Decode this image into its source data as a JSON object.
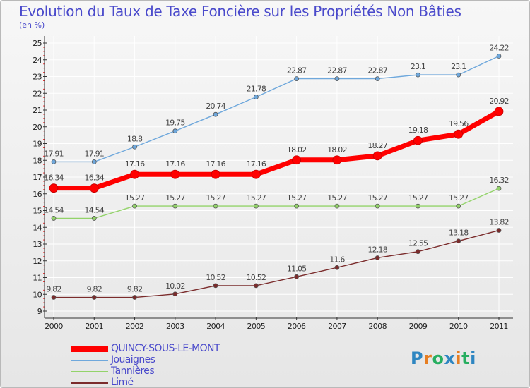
{
  "title": "Evolution du Taux de Taxe Foncière sur les Propriétés Non Bâties",
  "subtitle": "(en %)",
  "logo": {
    "text": "Proxiti",
    "colors": [
      "#2e86c1",
      "#e67e22",
      "#27ae60",
      "#2e86c1",
      "#e67e22",
      "#27ae60",
      "#2e86c1"
    ]
  },
  "chart_data": {
    "type": "line",
    "x": [
      "2000",
      "2001",
      "2002",
      "2003",
      "2004",
      "2005",
      "2006",
      "2007",
      "2008",
      "2009",
      "2010",
      "2011"
    ],
    "ylim": [
      9,
      25
    ],
    "yticks": [
      "9",
      "10",
      "11",
      "12",
      "13",
      "14",
      "15",
      "16",
      "17",
      "18",
      "19",
      "20",
      "21",
      "22",
      "23",
      "24",
      "25"
    ],
    "grid": true,
    "series": [
      {
        "name": "QUINCY-SOUS-LE-MONT",
        "color": "#ff0000",
        "emphasis": true,
        "values": [
          16.34,
          16.34,
          17.16,
          17.16,
          17.16,
          17.16,
          18.02,
          18.02,
          18.27,
          19.18,
          19.56,
          20.92
        ],
        "labels": [
          "16.34",
          "16.34",
          "17.16",
          "17.16",
          "17.16",
          "17.16",
          "18.02",
          "18.02",
          "18.27",
          "19.18",
          "19.56",
          "20.92"
        ]
      },
      {
        "name": "Jouaignes",
        "color": "#6fa8dc",
        "values": [
          17.91,
          17.91,
          18.8,
          19.75,
          20.74,
          21.78,
          22.87,
          22.87,
          22.87,
          23.1,
          23.1,
          24.22
        ],
        "labels": [
          "17.91",
          "17.91",
          "18.8",
          "19.75",
          "20.74",
          "21.78",
          "22.87",
          "22.87",
          "22.87",
          "23.1",
          "23.1",
          "24.22"
        ]
      },
      {
        "name": "Tannières",
        "color": "#93d36a",
        "values": [
          14.54,
          14.54,
          15.27,
          15.27,
          15.27,
          15.27,
          15.27,
          15.27,
          15.27,
          15.27,
          15.27,
          16.32
        ],
        "labels": [
          "14.54",
          "14.54",
          "15.27",
          "15.27",
          "15.27",
          "15.27",
          "15.27",
          "15.27",
          "15.27",
          "15.27",
          "15.27",
          "16.32"
        ]
      },
      {
        "name": "Limé",
        "color": "#7b2c2c",
        "values": [
          9.82,
          9.82,
          9.82,
          10.02,
          10.52,
          10.52,
          11.05,
          11.6,
          12.18,
          12.55,
          13.18,
          13.82
        ],
        "labels": [
          "9.82",
          "9.82",
          "9.82",
          "10.02",
          "10.52",
          "10.52",
          "11.05",
          "11.6",
          "12.18",
          "12.55",
          "13.18",
          "13.82"
        ]
      }
    ],
    "legend_position": "bottom-left"
  }
}
